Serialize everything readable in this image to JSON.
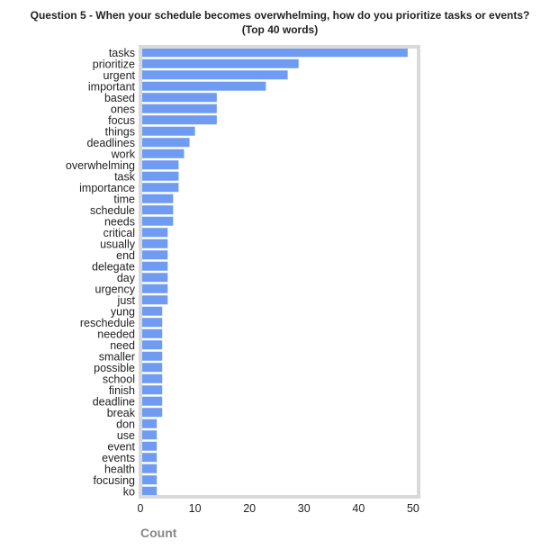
{
  "chart_data": {
    "type": "bar",
    "orientation": "horizontal",
    "title": "Question 5 - When your schedule becomes overwhelming, how do you prioritize tasks or events?",
    "subtitle": "(Top 40 words)",
    "xlabel": "Count",
    "ylabel": "",
    "xlim": [
      0,
      51
    ],
    "xticks": [
      0,
      10,
      20,
      30,
      40,
      50
    ],
    "grid": false,
    "bar_color": "#6f9bf2",
    "frame_color": "#d9d9d9",
    "categories": [
      "tasks",
      "prioritize",
      "urgent",
      "important",
      "based",
      "ones",
      "focus",
      "things",
      "deadlines",
      "work",
      "overwhelming",
      "task",
      "importance",
      "time",
      "schedule",
      "needs",
      "critical",
      "usually",
      "end",
      "delegate",
      "day",
      "urgency",
      "just",
      "yung",
      "reschedule",
      "needed",
      "need",
      "smaller",
      "possible",
      "school",
      "finish",
      "deadline",
      "break",
      "don",
      "use",
      "event",
      "events",
      "health",
      "focusing",
      "ko"
    ],
    "values": [
      49,
      29,
      27,
      23,
      14,
      14,
      14,
      10,
      9,
      8,
      7,
      7,
      7,
      6,
      6,
      6,
      5,
      5,
      5,
      5,
      5,
      5,
      5,
      4,
      4,
      4,
      4,
      4,
      4,
      4,
      4,
      4,
      4,
      3,
      3,
      3,
      3,
      3,
      3,
      3
    ]
  }
}
